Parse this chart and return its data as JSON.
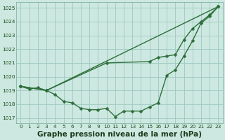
{
  "title": "Graphe pression niveau de la mer (hPa)",
  "xlim_min": -0.5,
  "xlim_max": 23.5,
  "ylim_min": 1016.6,
  "ylim_max": 1025.4,
  "yticks": [
    1017,
    1018,
    1019,
    1020,
    1021,
    1022,
    1023,
    1024,
    1025
  ],
  "xticks": [
    0,
    1,
    2,
    3,
    4,
    5,
    6,
    7,
    8,
    9,
    10,
    11,
    12,
    13,
    14,
    15,
    16,
    17,
    18,
    19,
    20,
    21,
    22,
    23
  ],
  "bg_color": "#cce8e0",
  "grid_color": "#9ec8c0",
  "line_color": "#2d6e3a",
  "line1_x": [
    0,
    1,
    2,
    3,
    4,
    5,
    6,
    7,
    8,
    9,
    10,
    11,
    12,
    13,
    14,
    15,
    16,
    17,
    18,
    19,
    20,
    21,
    22,
    23
  ],
  "line1_y": [
    1019.3,
    1019.1,
    1019.2,
    1019.0,
    1018.7,
    1018.2,
    1018.1,
    1017.7,
    1017.6,
    1017.6,
    1017.7,
    1017.1,
    1017.5,
    1017.5,
    1017.5,
    1017.8,
    1018.1,
    1020.1,
    1020.5,
    1021.5,
    1022.6,
    1023.9,
    1024.4,
    1025.1
  ],
  "line2_x": [
    0,
    3,
    23
  ],
  "line2_y": [
    1019.3,
    1019.0,
    1025.1
  ],
  "line3_x": [
    0,
    3,
    10,
    15,
    16,
    17,
    18,
    19,
    20,
    21,
    22,
    23
  ],
  "line3_y": [
    1019.3,
    1019.0,
    1021.0,
    1021.1,
    1021.4,
    1021.5,
    1021.6,
    1022.7,
    1023.5,
    1024.0,
    1024.5,
    1025.1
  ],
  "marker_size": 2.5,
  "line_width": 1.0,
  "title_fontsize": 7.5,
  "tick_fontsize": 5.2,
  "tick_color": "#1a4a1a",
  "title_color": "#1a3a1a"
}
